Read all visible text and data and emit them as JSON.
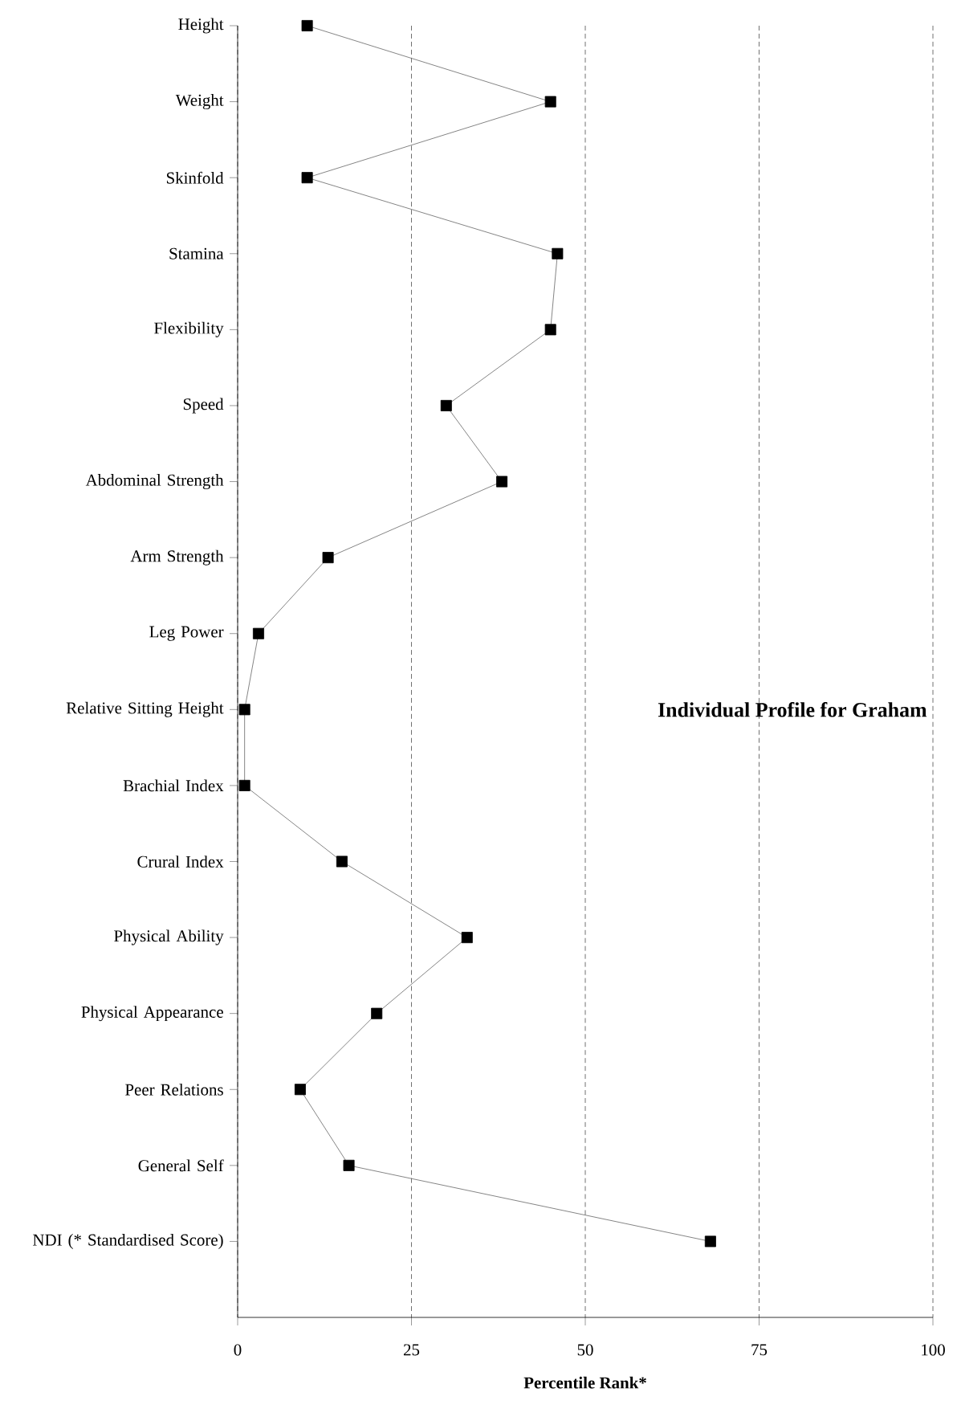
{
  "chart_data": {
    "type": "line",
    "orientation": "horizontal",
    "title": "Individual Profile for Graham",
    "xlabel": "Percentile Rank*",
    "categories": [
      "Height",
      "Weight",
      "Skinfold",
      "Stamina",
      "Flexibility",
      "Speed",
      "Abdominal Strength",
      "Arm Strength",
      "Leg Power",
      "Relative Sitting Height",
      "Brachial Index",
      "Crural Index",
      "Physical Ability",
      "Physical Appearance",
      "Peer Relations",
      "General Self",
      "NDI   (* Standardised Score)"
    ],
    "values": [
      10,
      45,
      10,
      46,
      45,
      30,
      38,
      13,
      3,
      1,
      1,
      15,
      33,
      20,
      9,
      16,
      68
    ],
    "color": "#000000",
    "marker": "square",
    "line_style": "solid",
    "xlim": [
      0,
      100
    ],
    "xticks": [
      0,
      25,
      50,
      75,
      100
    ],
    "grid": "x"
  }
}
